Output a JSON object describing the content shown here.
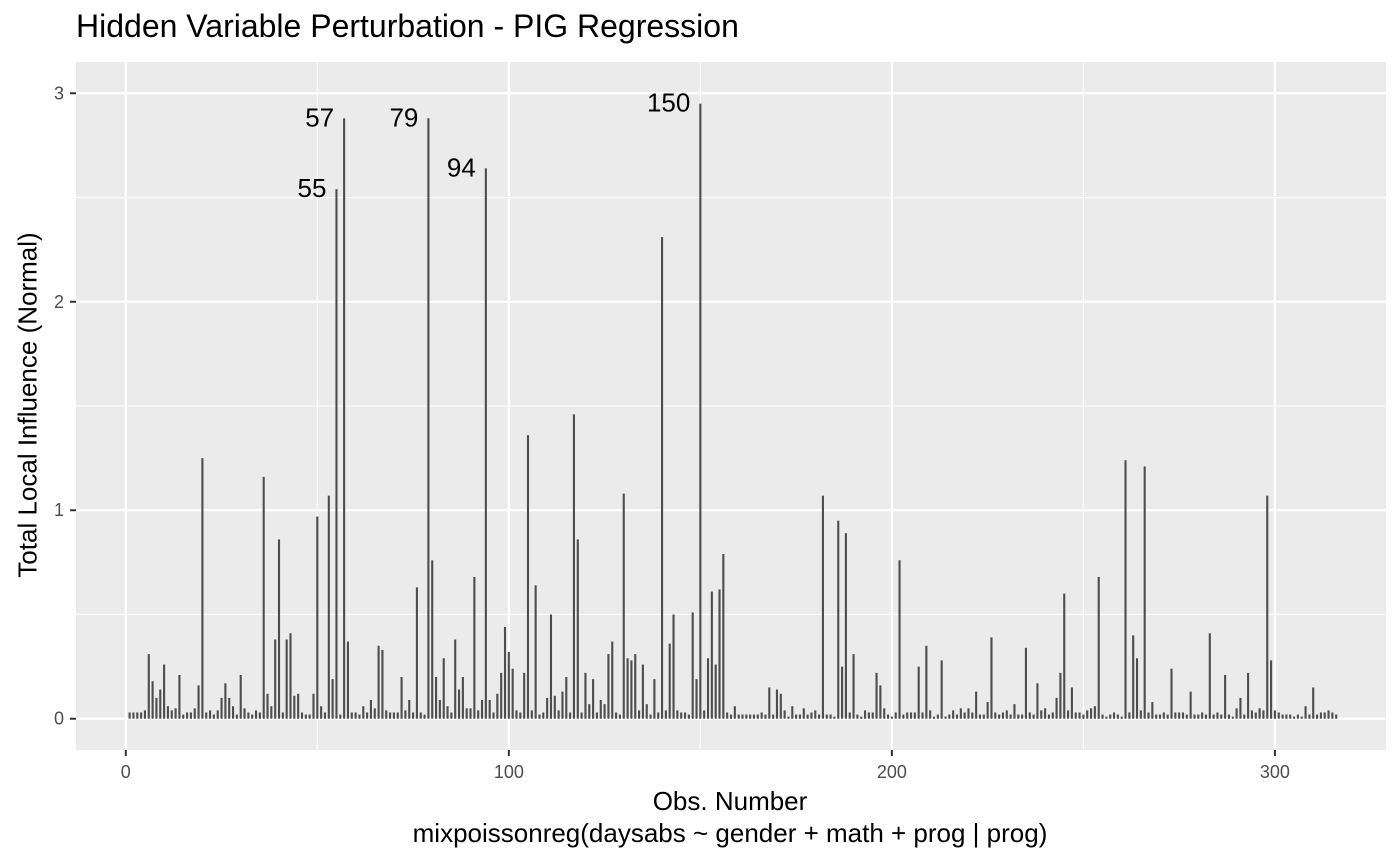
{
  "chart_data": {
    "type": "bar",
    "title": "Hidden Variable Perturbation - PIG Regression",
    "xlabel": "Obs. Number",
    "xlabel2": "mixpoissonreg(daysabs ~ gender + math + prog | prog)",
    "ylabel": "Total Local Influence (Normal)",
    "xlim": [
      -13,
      329
    ],
    "ylim": [
      -0.15,
      3.15
    ],
    "x_ticks": [
      0,
      100,
      200,
      300
    ],
    "y_ticks": [
      0,
      1,
      2,
      3
    ],
    "grid": true,
    "bar_color": "#4d4d4d",
    "panel_color": "#ebebeb",
    "annotations": [
      {
        "label": "55",
        "x": 55,
        "y": 2.54
      },
      {
        "label": "57",
        "x": 57,
        "y": 2.88
      },
      {
        "label": "79",
        "x": 79,
        "y": 2.88
      },
      {
        "label": "94",
        "x": 94,
        "y": 2.64
      },
      {
        "label": "150",
        "x": 150,
        "y": 2.95
      }
    ],
    "values": [
      0.03,
      0.03,
      0.03,
      0.03,
      0.04,
      0.31,
      0.18,
      0.1,
      0.14,
      0.26,
      0.06,
      0.04,
      0.05,
      0.21,
      0.02,
      0.03,
      0.03,
      0.05,
      0.16,
      1.25,
      0.03,
      0.04,
      0.02,
      0.04,
      0.1,
      0.17,
      0.1,
      0.06,
      0.02,
      0.21,
      0.05,
      0.03,
      0.02,
      0.04,
      0.03,
      1.16,
      0.12,
      0.06,
      0.38,
      0.86,
      0.03,
      0.38,
      0.41,
      0.11,
      0.12,
      0.03,
      0.02,
      0.02,
      0.12,
      0.97,
      0.06,
      0.03,
      1.07,
      0.19,
      2.54,
      0.02,
      2.88,
      0.37,
      0.03,
      0.03,
      0.02,
      0.06,
      0.03,
      0.09,
      0.05,
      0.35,
      0.33,
      0.04,
      0.03,
      0.03,
      0.03,
      0.2,
      0.04,
      0.09,
      0.03,
      0.63,
      0.03,
      0.02,
      2.88,
      0.76,
      0.2,
      0.09,
      0.29,
      0.06,
      0.03,
      0.38,
      0.14,
      0.2,
      0.05,
      0.05,
      0.68,
      0.04,
      0.09,
      2.64,
      0.09,
      0.03,
      0.12,
      0.22,
      0.44,
      0.32,
      0.24,
      0.04,
      0.03,
      0.22,
      1.36,
      0.04,
      0.64,
      0.02,
      0.03,
      0.1,
      0.5,
      0.11,
      0.04,
      0.13,
      0.2,
      0.03,
      1.46,
      0.86,
      0.03,
      0.22,
      0.07,
      0.19,
      0.03,
      0.09,
      0.07,
      0.31,
      0.37,
      0.03,
      0.02,
      1.08,
      0.29,
      0.28,
      0.31,
      0.04,
      0.26,
      0.07,
      0.02,
      0.19,
      0.03,
      2.31,
      0.04,
      0.36,
      0.5,
      0.04,
      0.03,
      0.03,
      0.02,
      0.51,
      0.19,
      2.95,
      0.04,
      0.29,
      0.61,
      0.26,
      0.62,
      0.79,
      0.03,
      0.02,
      0.06,
      0.02,
      0.02,
      0.02,
      0.02,
      0.02,
      0.02,
      0.03,
      0.02,
      0.15,
      0.02,
      0.14,
      0.12,
      0.04,
      0.01,
      0.06,
      0.02,
      0.02,
      0.05,
      0.02,
      0.03,
      0.04,
      0.02,
      1.07,
      0.02,
      0.02,
      0.01,
      0.95,
      0.25,
      0.89,
      0.03,
      0.31,
      0.02,
      0.01,
      0.04,
      0.03,
      0.03,
      0.22,
      0.16,
      0.05,
      0.02,
      0.01,
      0.03,
      0.76,
      0.02,
      0.03,
      0.03,
      0.03,
      0.25,
      0.03,
      0.35,
      0.04,
      0.01,
      0.02,
      0.28,
      0.01,
      0.02,
      0.04,
      0.02,
      0.05,
      0.03,
      0.05,
      0.03,
      0.13,
      0.02,
      0.02,
      0.08,
      0.39,
      0.03,
      0.02,
      0.03,
      0.04,
      0.02,
      0.07,
      0.02,
      0.02,
      0.34,
      0.03,
      0.02,
      0.17,
      0.04,
      0.05,
      0.02,
      0.03,
      0.1,
      0.22,
      0.6,
      0.04,
      0.15,
      0.03,
      0.03,
      0.02,
      0.04,
      0.05,
      0.06,
      0.68,
      0.02,
      0.01,
      0.02,
      0.03,
      0.02,
      0.01,
      1.24,
      0.03,
      0.4,
      0.29,
      0.04,
      1.21,
      0.03,
      0.08,
      0.02,
      0.02,
      0.03,
      0.02,
      0.24,
      0.03,
      0.03,
      0.03,
      0.02,
      0.13,
      0.02,
      0.02,
      0.03,
      0.02,
      0.41,
      0.02,
      0.03,
      0.02,
      0.21,
      0.02,
      0.01,
      0.05,
      0.1,
      0.02,
      0.22,
      0.04,
      0.03,
      0.05,
      0.04,
      1.07,
      0.28,
      0.04,
      0.03,
      0.02,
      0.02,
      0.02,
      0.01,
      0.02,
      0.01,
      0.06,
      0.02,
      0.15,
      0.02,
      0.03,
      0.03,
      0.04,
      0.03,
      0.02
    ]
  }
}
